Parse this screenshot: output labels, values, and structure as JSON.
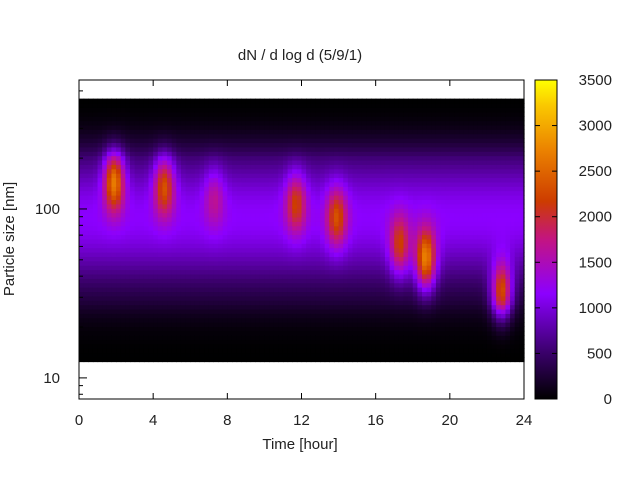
{
  "chart_data": {
    "type": "heatmap",
    "title": "dN / d log d (5/9/1)",
    "xlabel": "Time [hour]",
    "ylabel": "Particle size [nm]",
    "x_ticks": [
      "0",
      "4",
      "8",
      "12",
      "16",
      "20",
      "24"
    ],
    "y_ticks": [
      "10",
      "100"
    ],
    "xlim": [
      0,
      24
    ],
    "ylim_nm": [
      7.5,
      580
    ],
    "yscale": "log",
    "colorbar": {
      "ticks": [
        "0",
        "500",
        "1000",
        "1500",
        "2000",
        "2500",
        "3000",
        "3500"
      ],
      "range": [
        0,
        3500
      ],
      "palette": "black-purple-red-orange-yellow"
    },
    "data_extent_nm": [
      12.5,
      450
    ],
    "blobs": [
      {
        "time_h": 1.9,
        "size_nm": 150,
        "peak": 2900
      },
      {
        "time_h": 4.6,
        "size_nm": 140,
        "peak": 2500
      },
      {
        "time_h": 7.3,
        "size_nm": 120,
        "peak": 1700
      },
      {
        "time_h": 11.7,
        "size_nm": 110,
        "peak": 2200
      },
      {
        "time_h": 13.9,
        "size_nm": 90,
        "peak": 2300
      },
      {
        "time_h": 17.3,
        "size_nm": 60,
        "peak": 2300
      },
      {
        "time_h": 18.7,
        "size_nm": 50,
        "peak": 3000
      },
      {
        "time_h": 22.8,
        "size_nm": 32,
        "peak": 3000
      }
    ]
  }
}
